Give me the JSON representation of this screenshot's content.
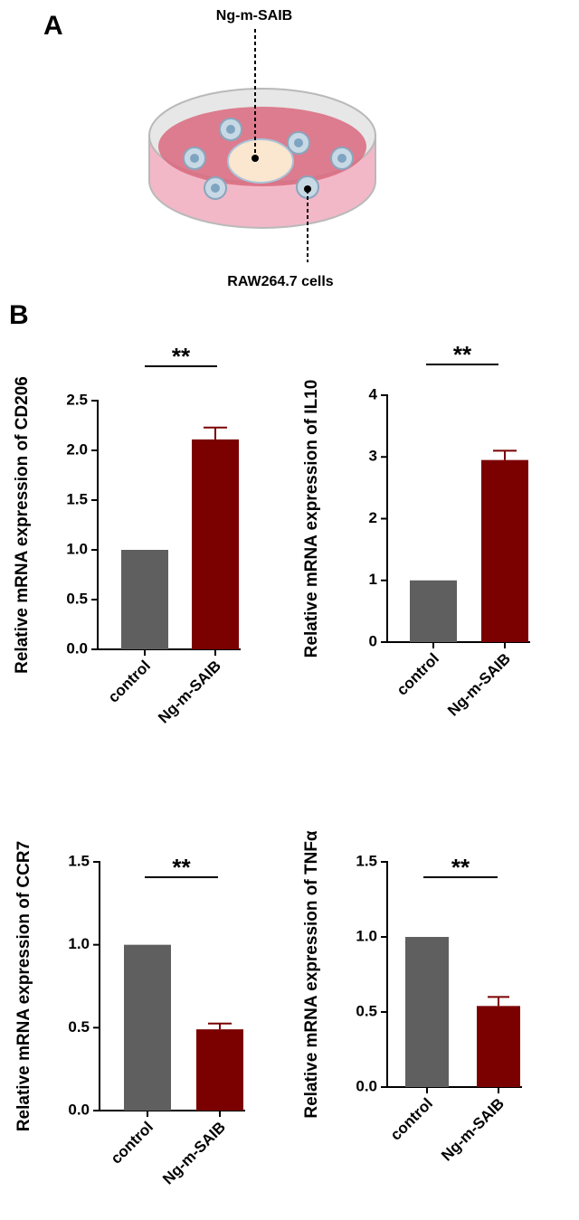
{
  "panel_a": {
    "label": "A",
    "top_label": "Ng-m-SAIB",
    "bottom_label": "RAW264.7 cells"
  },
  "panel_b": {
    "label": "B"
  },
  "chart_data": [
    {
      "type": "bar",
      "y_label": "Relative mRNA expression of CD206",
      "categories": [
        "control",
        "Ng-m-SAIB"
      ],
      "values": [
        1,
        2.11
      ],
      "errors": [
        null,
        0.12
      ],
      "colors": [
        "#5f5f5f",
        "#7b0000"
      ],
      "ylim": [
        0,
        2.5
      ],
      "yticks": [
        {
          "value": 0,
          "label": "0.0"
        },
        0.5,
        {
          "value": 1,
          "label": "1.0"
        },
        1.5,
        {
          "value": 2,
          "label": "2.0"
        },
        2.5
      ],
      "significance": "**"
    },
    {
      "type": "bar",
      "y_label": "Relative mRNA expression of IL10",
      "categories": [
        "control",
        "Ng-m-SAIB"
      ],
      "values": [
        1,
        2.95
      ],
      "errors": [
        null,
        0.15
      ],
      "colors": [
        "#5f5f5f",
        "#7b0000"
      ],
      "ylim": [
        0,
        4
      ],
      "yticks": [
        0,
        1,
        2,
        3,
        4
      ],
      "significance": "**"
    },
    {
      "type": "bar",
      "y_label": "Relative mRNA expression of CCR7",
      "categories": [
        "control",
        "Ng-m-SAIB"
      ],
      "values": [
        1,
        0.49
      ],
      "errors": [
        null,
        0.035
      ],
      "colors": [
        "#5f5f5f",
        "#7b0000"
      ],
      "ylim": [
        0,
        1.5
      ],
      "yticks": [
        {
          "value": 0,
          "label": "0.0"
        },
        0.5,
        {
          "value": 1,
          "label": "1.0"
        },
        1.5
      ],
      "significance": "**"
    },
    {
      "type": "bar",
      "y_label": "Relative mRNA expression of TNFα",
      "categories": [
        "control",
        "Ng-m-SAIB"
      ],
      "values": [
        1,
        0.54
      ],
      "errors": [
        null,
        0.06
      ],
      "colors": [
        "#5f5f5f",
        "#7b0000"
      ],
      "ylim": [
        0,
        1.5
      ],
      "yticks": [
        {
          "value": 0,
          "label": "0.0"
        },
        0.5,
        {
          "value": 1,
          "label": "1.0"
        },
        1.5
      ],
      "significance": "**"
    }
  ]
}
